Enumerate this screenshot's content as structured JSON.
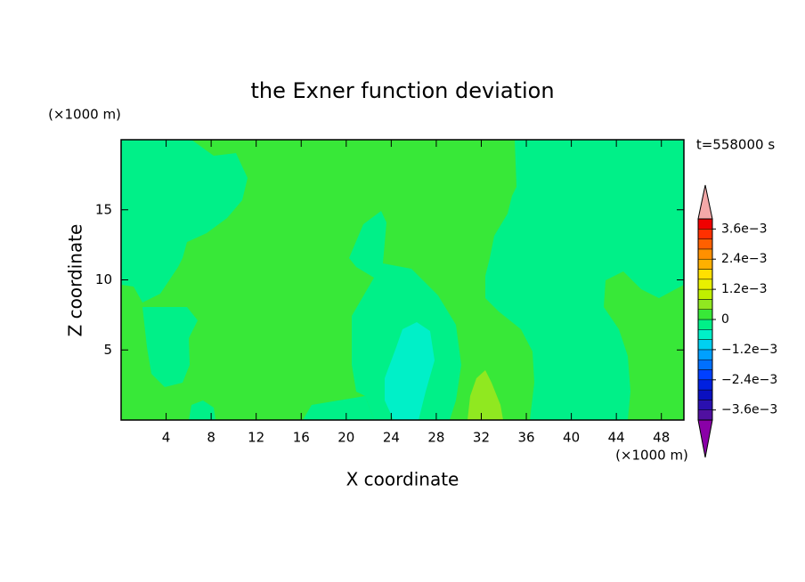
{
  "chart_data": {
    "type": "contour",
    "title": "the Exner function deviation",
    "x_label": "X coordinate",
    "y_label": "Z coordinate",
    "x_unit": "(×1000 m)",
    "y_unit": "(×1000 m)",
    "time_label": "t=558000 s",
    "xlim": [
      0,
      50
    ],
    "xticks": [
      4,
      8,
      12,
      16,
      20,
      24,
      28,
      32,
      36,
      40,
      44,
      48
    ],
    "ylim": [
      0,
      20
    ],
    "yticks": [
      5,
      10,
      15
    ],
    "colorbar": {
      "clim": [
        -0.004,
        0.004
      ],
      "ticks": [
        {
          "value": -0.0036,
          "label": "−3.6e−3"
        },
        {
          "value": -0.0024,
          "label": "−2.4e−3"
        },
        {
          "value": -0.0012,
          "label": "−1.2e−3"
        },
        0,
        {
          "value": 0.0012,
          "label": "1.2e−3"
        },
        {
          "value": 0.0024,
          "label": "2.4e−3"
        },
        {
          "value": 0.0036,
          "label": "3.6e−3"
        }
      ],
      "colors": [
        "#5010a0",
        "#2a10b0",
        "#0a10c0",
        "#0020e0",
        "#0040ff",
        "#0070ff",
        "#00a0ff",
        "#00d0f0",
        "#00f0c8",
        "#00f088",
        "#38e838",
        "#90e820",
        "#c0f000",
        "#e8f000",
        "#ffe000",
        "#ffb000",
        "#ff9000",
        "#ff6000",
        "#ff3000",
        "#f00000"
      ],
      "below_color": "#8a00a8",
      "above_color": "#f4a8a8"
    }
  }
}
